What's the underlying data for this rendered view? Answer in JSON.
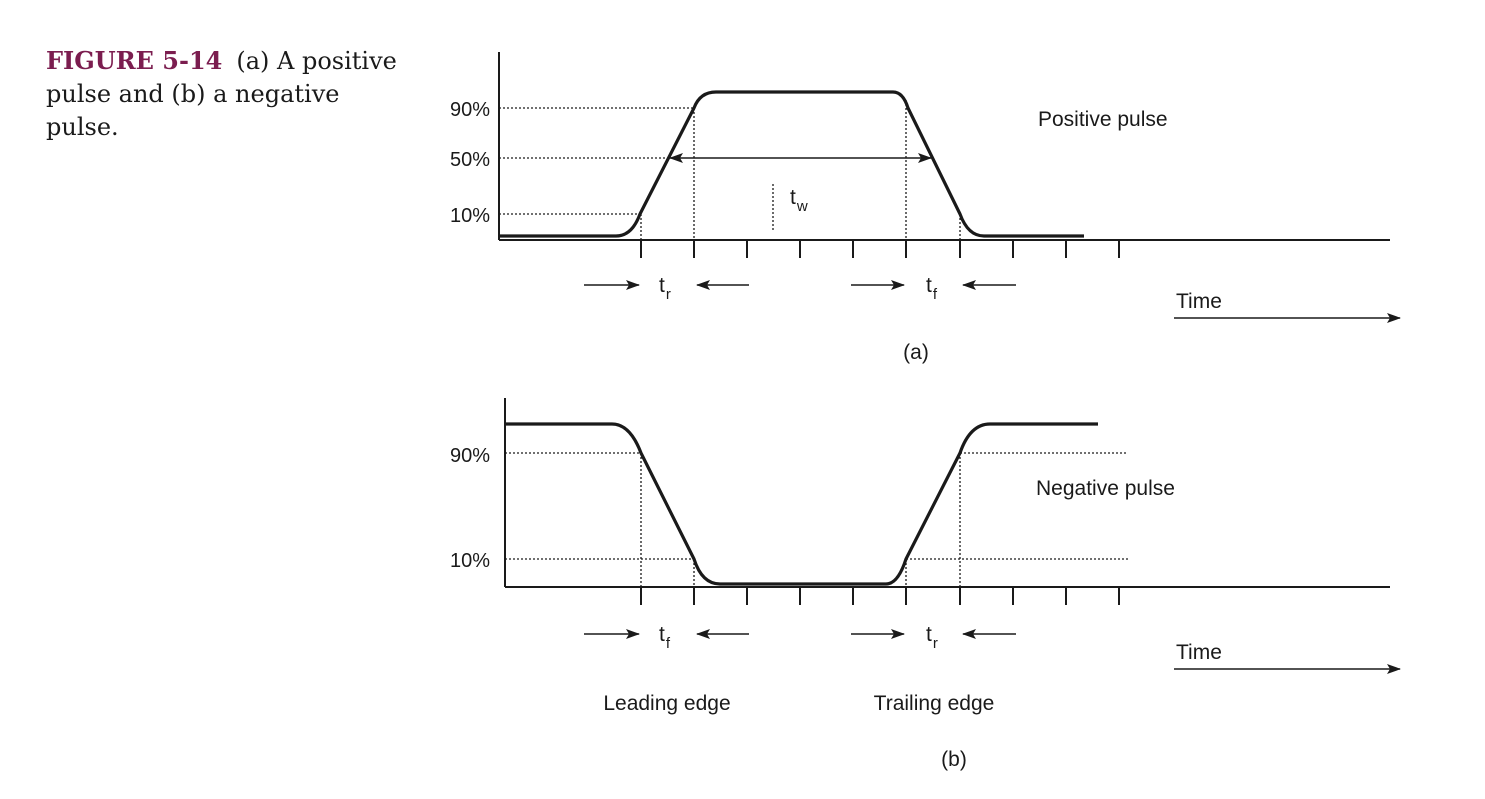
{
  "caption": {
    "label": "FIGURE 5-14",
    "text": "(a) A positive pulse and (b) a negative pulse."
  },
  "panel_a": {
    "y_labels": [
      "90%",
      "50%",
      "10%"
    ],
    "pulse_label": "Positive pulse",
    "rise_symbol": "t",
    "rise_sub": "r",
    "fall_symbol": "t",
    "fall_sub": "f",
    "width_symbol": "t",
    "width_sub": "w",
    "time_label": "Time",
    "panel_label": "(a)"
  },
  "panel_b": {
    "y_labels": [
      "90%",
      "10%"
    ],
    "pulse_label": "Negative pulse",
    "fall_symbol": "t",
    "fall_sub": "f",
    "rise_symbol": "t",
    "rise_sub": "r",
    "leading_label": "Leading edge",
    "trailing_label": "Trailing edge",
    "time_label": "Time",
    "panel_label": "(b)"
  }
}
